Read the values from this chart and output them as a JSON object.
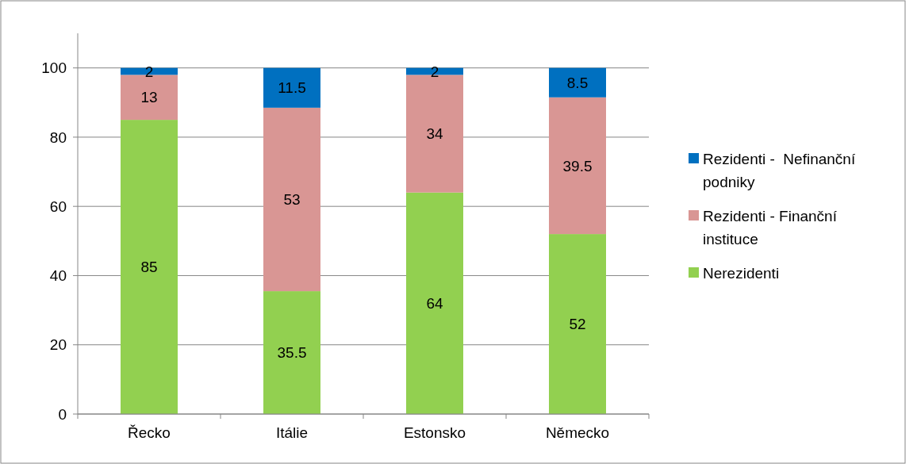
{
  "chart_data": {
    "type": "bar",
    "stacked": true,
    "categories": [
      "Řecko",
      "Itálie",
      "Estonsko",
      "Německo"
    ],
    "series": [
      {
        "name": "Nerezidenti",
        "color": "#92d050",
        "values": [
          85,
          35.5,
          64,
          52
        ]
      },
      {
        "name": "Rezidenti - Finanční instituce",
        "color": "#d99694",
        "values": [
          13,
          53,
          34,
          39.5
        ]
      },
      {
        "name": "Rezidenti -  Nefinanční podniky",
        "color": "#0070c0",
        "values": [
          2,
          11.5,
          2,
          8.5
        ]
      }
    ],
    "ylim": [
      0,
      110
    ],
    "yticks": [
      0,
      20,
      40,
      60,
      80,
      100
    ],
    "grid": "y",
    "legend": "right",
    "data_labels": true
  }
}
